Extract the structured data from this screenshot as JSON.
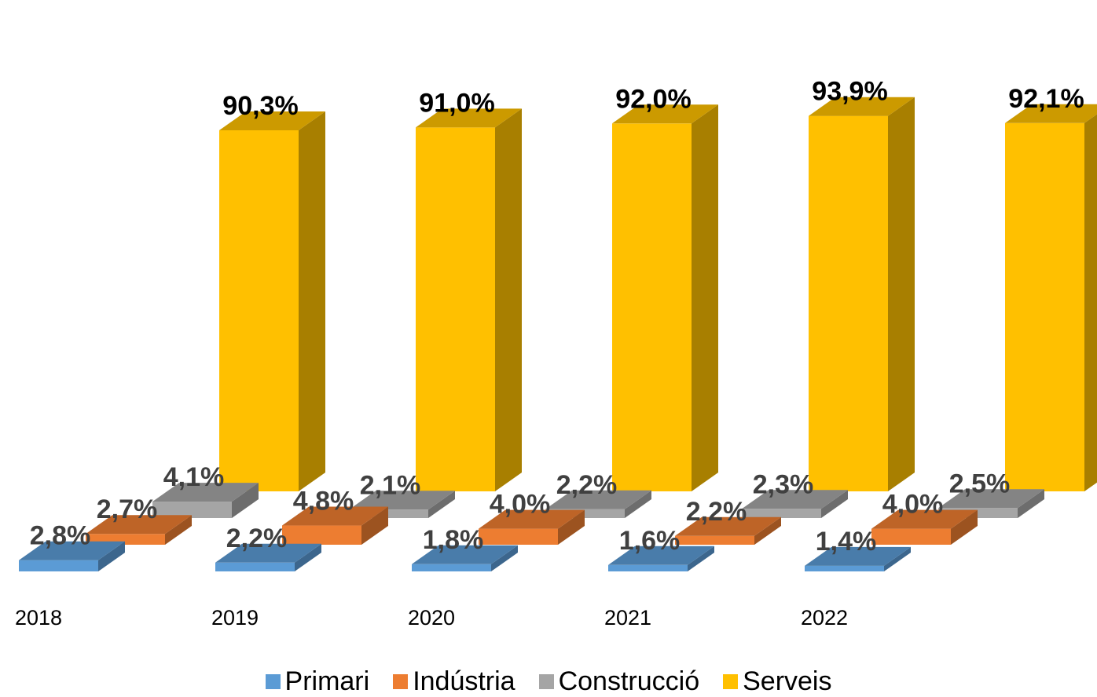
{
  "chart_data": {
    "type": "bar",
    "style": "3d-clustered-depth",
    "title": "",
    "xlabel": "",
    "ylabel": "",
    "categories": [
      "2018",
      "2019",
      "2020",
      "2021",
      "2022"
    ],
    "series": [
      {
        "name": "Primari",
        "values": [
          2.8,
          2.2,
          1.8,
          1.6,
          1.4
        ],
        "labels": [
          "2,8%",
          "2,2%",
          "1,8%",
          "1,6%",
          "1,4%"
        ],
        "color": "#5B9BD5",
        "label_color": "#404040"
      },
      {
        "name": "Indústria",
        "values": [
          2.7,
          4.8,
          4.0,
          2.2,
          4.0
        ],
        "labels": [
          "2,7%",
          "4,8%",
          "4,0%",
          "2,2%",
          "4,0%"
        ],
        "color": "#ED7D31",
        "label_color": "#404040"
      },
      {
        "name": "Construcció",
        "values": [
          4.1,
          2.1,
          2.2,
          2.3,
          2.5
        ],
        "labels": [
          "4,1%",
          "2,1%",
          "2,2%",
          "2,3%",
          "2,5%"
        ],
        "color": "#A5A5A5",
        "label_color": "#404040"
      },
      {
        "name": "Serveis",
        "values": [
          90.3,
          91.0,
          92.0,
          93.9,
          92.1
        ],
        "labels": [
          "90,3%",
          "91,0%",
          "92,0%",
          "93,9%",
          "92,1%"
        ],
        "color": "#FFC000",
        "label_color": "#000000"
      }
    ],
    "legend": {
      "position": "bottom"
    },
    "grid": false
  }
}
